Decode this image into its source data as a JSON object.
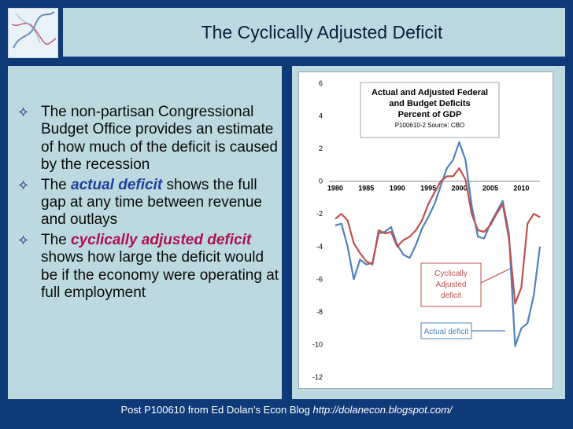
{
  "slide": {
    "title": "The Cyclically Adjusted Deficit",
    "footer_text": "Post P100610 from Ed Dolan’s Econ Blog ",
    "footer_url": "http://dolanecon.blogspot.com/"
  },
  "bullets": [
    {
      "pre": "The non-partisan Congressional Budget Office provides an estimate of how much of the deficit is caused by the recession",
      "em": "",
      "post": ""
    },
    {
      "pre": "The ",
      "em": "actual deficit",
      "post": " shows the full gap at any time between revenue and outlays"
    },
    {
      "pre": "The ",
      "em": "cyclically adjusted deficit",
      "post": " shows how large the deficit would be if the economy were operating at full employment"
    }
  ],
  "colors": {
    "background": "#0f3a78",
    "panel": "#bcd9df",
    "actual_series": "#4f81bd",
    "adjusted_series": "#c0504d",
    "emphasis_blue": "#1f3f9f",
    "emphasis_red": "#b0104f"
  },
  "chart_data": {
    "type": "line",
    "title_lines": [
      "Actual and Adjusted Federal",
      "and Budget Deficits",
      "Percent of GDP"
    ],
    "subtitle": "P100610-2 Source: CBO",
    "ylim": [
      -12,
      6
    ],
    "yticks": [
      "6",
      "4",
      "2",
      "0",
      "-2",
      "-4",
      "-6",
      "-8",
      "-10",
      "-12"
    ],
    "xticks": [
      "1980",
      "1985",
      "1990",
      "1995",
      "2000",
      "2005",
      "2010"
    ],
    "xlim": [
      1979,
      2013
    ],
    "grid": false,
    "series": [
      {
        "name": "Actual deficit",
        "x": [
          1980,
          1981,
          1982,
          1983,
          1984,
          1985,
          1986,
          1987,
          1988,
          1989,
          1990,
          1991,
          1992,
          1993,
          1994,
          1995,
          1996,
          1997,
          1998,
          1999,
          2000,
          2001,
          2002,
          2003,
          2004,
          2005,
          2006,
          2007,
          2008,
          2009,
          2010,
          2011,
          2012,
          2013
        ],
        "values": [
          -2.7,
          -2.6,
          -4.0,
          -6.0,
          -4.8,
          -5.1,
          -5.0,
          -3.2,
          -3.1,
          -2.8,
          -3.9,
          -4.5,
          -4.7,
          -3.9,
          -2.9,
          -2.2,
          -1.4,
          -0.3,
          0.8,
          1.3,
          2.4,
          1.3,
          -1.5,
          -3.4,
          -3.5,
          -2.6,
          -1.9,
          -1.2,
          -3.2,
          -10.1,
          -9.0,
          -8.7,
          -7.0,
          -4.0
        ]
      },
      {
        "name": "Cyclically Adjusted deficit",
        "x": [
          1980,
          1981,
          1982,
          1983,
          1984,
          1985,
          1986,
          1987,
          1988,
          1989,
          1990,
          1991,
          1992,
          1993,
          1994,
          1995,
          1996,
          1997,
          1998,
          1999,
          2000,
          2001,
          2002,
          2003,
          2004,
          2005,
          2006,
          2007,
          2008,
          2009,
          2010,
          2011,
          2012,
          2013
        ],
        "values": [
          -2.3,
          -2.0,
          -2.4,
          -3.8,
          -4.4,
          -4.9,
          -5.1,
          -3.0,
          -3.2,
          -3.1,
          -4.0,
          -3.6,
          -3.4,
          -3.0,
          -2.4,
          -1.4,
          -0.7,
          0.0,
          0.3,
          0.3,
          0.8,
          0.1,
          -2.0,
          -3.0,
          -3.1,
          -2.7,
          -2.0,
          -1.4,
          -3.5,
          -7.5,
          -6.5,
          -2.6,
          -2.0,
          -2.2
        ]
      }
    ],
    "annotations": [
      {
        "id": "adjusted-label",
        "lines": [
          "Cyclically",
          "Adjusted",
          "deficit"
        ]
      },
      {
        "id": "actual-label",
        "lines": [
          "Actual deficit"
        ]
      }
    ]
  }
}
